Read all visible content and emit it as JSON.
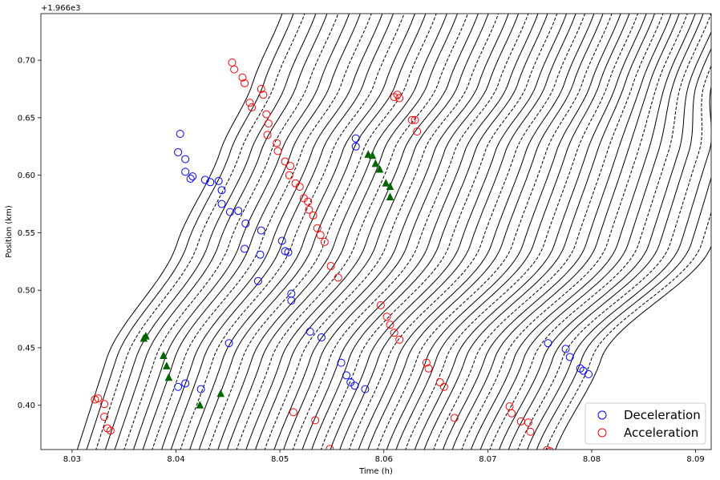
{
  "chart_data": {
    "type": "line",
    "xlabel": "Time (h)",
    "ylabel": "Position (km)",
    "y_offset_text": "+1.966e3",
    "xlim": [
      8.027,
      8.0915
    ],
    "ylim": [
      0.3615,
      0.7405
    ],
    "x_ticks": [
      8.03,
      8.04,
      8.05,
      8.06,
      8.07,
      8.08,
      8.09
    ],
    "x_tick_labels": [
      "8.03",
      "8.04",
      "8.05",
      "8.06",
      "8.07",
      "8.08",
      "8.09"
    ],
    "y_ticks": [
      0.4,
      0.45,
      0.5,
      0.55,
      0.6,
      0.65,
      0.7
    ],
    "y_tick_labels": [
      "0.40",
      "0.45",
      "0.50",
      "0.55",
      "0.60",
      "0.65",
      "0.70"
    ],
    "grid": false,
    "legend_position": "bottom-right",
    "trajectories": {
      "count": 52,
      "first_entry_time": 8.0305,
      "last_entry_time": 8.0765,
      "speed_kmh": 28,
      "line_color": "#000000",
      "style_cycle": [
        "solid",
        "solid",
        "dashed"
      ]
    },
    "series": [
      {
        "name": "Deceleration",
        "marker": "open-circle",
        "color": "#0000ff",
        "points": [
          [
            8.0404,
            0.636
          ],
          [
            8.0402,
            0.62
          ],
          [
            8.0409,
            0.614
          ],
          [
            8.0409,
            0.603
          ],
          [
            8.0414,
            0.597
          ],
          [
            8.0416,
            0.599
          ],
          [
            8.0428,
            0.596
          ],
          [
            8.0433,
            0.594
          ],
          [
            8.0441,
            0.595
          ],
          [
            8.0444,
            0.587
          ],
          [
            8.0444,
            0.575
          ],
          [
            8.0452,
            0.568
          ],
          [
            8.046,
            0.569
          ],
          [
            8.0467,
            0.558
          ],
          [
            8.0482,
            0.552
          ],
          [
            8.0466,
            0.536
          ],
          [
            8.0481,
            0.531
          ],
          [
            8.0479,
            0.508
          ],
          [
            8.0502,
            0.543
          ],
          [
            8.0505,
            0.534
          ],
          [
            8.0508,
            0.533
          ],
          [
            8.0511,
            0.497
          ],
          [
            8.0511,
            0.491
          ],
          [
            8.0451,
            0.454
          ],
          [
            8.0402,
            0.416
          ],
          [
            8.0409,
            0.419
          ],
          [
            8.0424,
            0.414
          ],
          [
            8.0529,
            0.464
          ],
          [
            8.054,
            0.459
          ],
          [
            8.0573,
            0.632
          ],
          [
            8.0573,
            0.625
          ],
          [
            8.0559,
            0.437
          ],
          [
            8.0564,
            0.426
          ],
          [
            8.0568,
            0.42
          ],
          [
            8.0572,
            0.417
          ],
          [
            8.0582,
            0.414
          ],
          [
            8.0758,
            0.454
          ],
          [
            8.0775,
            0.449
          ],
          [
            8.0779,
            0.442
          ],
          [
            8.0789,
            0.432
          ],
          [
            8.0792,
            0.43
          ],
          [
            8.0797,
            0.427
          ]
        ]
      },
      {
        "name": "Acceleration",
        "marker": "open-circle",
        "color": "#ff0000",
        "points": [
          [
            8.0454,
            0.698
          ],
          [
            8.0456,
            0.692
          ],
          [
            8.0464,
            0.685
          ],
          [
            8.0466,
            0.68
          ],
          [
            8.0471,
            0.663
          ],
          [
            8.0473,
            0.659
          ],
          [
            8.0482,
            0.675
          ],
          [
            8.0484,
            0.67
          ],
          [
            8.0487,
            0.653
          ],
          [
            8.0489,
            0.645
          ],
          [
            8.0488,
            0.635
          ],
          [
            8.0497,
            0.628
          ],
          [
            8.0498,
            0.621
          ],
          [
            8.0505,
            0.612
          ],
          [
            8.051,
            0.608
          ],
          [
            8.0509,
            0.6
          ],
          [
            8.0515,
            0.593
          ],
          [
            8.0519,
            0.59
          ],
          [
            8.0523,
            0.58
          ],
          [
            8.0527,
            0.577
          ],
          [
            8.0528,
            0.57
          ],
          [
            8.0532,
            0.565
          ],
          [
            8.0536,
            0.554
          ],
          [
            8.0539,
            0.548
          ],
          [
            8.0543,
            0.542
          ],
          [
            8.0549,
            0.521
          ],
          [
            8.0556,
            0.511
          ],
          [
            8.0597,
            0.487
          ],
          [
            8.0603,
            0.477
          ],
          [
            8.0606,
            0.47
          ],
          [
            8.061,
            0.463
          ],
          [
            8.0615,
            0.457
          ],
          [
            8.061,
            0.668
          ],
          [
            8.0613,
            0.67
          ],
          [
            8.0615,
            0.667
          ],
          [
            8.0627,
            0.648
          ],
          [
            8.063,
            0.648
          ],
          [
            8.0632,
            0.638
          ],
          [
            8.0641,
            0.437
          ],
          [
            8.0643,
            0.432
          ],
          [
            8.0654,
            0.42
          ],
          [
            8.0658,
            0.416
          ],
          [
            8.0668,
            0.389
          ],
          [
            8.0513,
            0.394
          ],
          [
            8.0534,
            0.387
          ],
          [
            8.0548,
            0.362
          ],
          [
            8.0322,
            0.405
          ],
          [
            8.0325,
            0.406
          ],
          [
            8.0331,
            0.401
          ],
          [
            8.0331,
            0.39
          ],
          [
            8.0334,
            0.38
          ],
          [
            8.0337,
            0.378
          ],
          [
            8.0721,
            0.399
          ],
          [
            8.0723,
            0.393
          ],
          [
            8.0732,
            0.386
          ],
          [
            8.0739,
            0.385
          ],
          [
            8.0741,
            0.377
          ],
          [
            8.0757,
            0.361
          ],
          [
            8.076,
            0.36
          ]
        ]
      },
      {
        "marker": "filled-triangle",
        "color": "#006400",
        "points": [
          [
            8.0369,
            0.458
          ],
          [
            8.0371,
            0.46
          ],
          [
            8.0388,
            0.443
          ],
          [
            8.0391,
            0.434
          ],
          [
            8.0393,
            0.424
          ],
          [
            8.0423,
            0.4
          ],
          [
            8.0443,
            0.41
          ],
          [
            8.0585,
            0.618
          ],
          [
            8.0589,
            0.617
          ],
          [
            8.0592,
            0.61
          ],
          [
            8.0596,
            0.605
          ],
          [
            8.0602,
            0.593
          ],
          [
            8.0606,
            0.59
          ],
          [
            8.0606,
            0.581
          ]
        ]
      }
    ]
  }
}
